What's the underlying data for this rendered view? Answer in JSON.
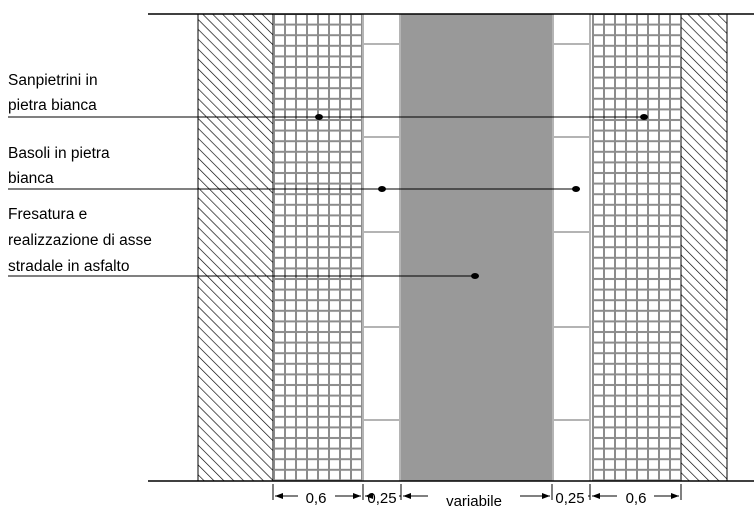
{
  "labels": {
    "sanpietrini": [
      "Sanpietrini in",
      "pietra bianca"
    ],
    "basoli": [
      "Basoli in pietra",
      "bianca"
    ],
    "fresatura": [
      "Fresatura e",
      "realizzazione di asse",
      "stradale in asfalto"
    ]
  },
  "dimensions": {
    "left_sanpietrini": "0,6",
    "left_basoli": "0,25",
    "center": "variabile",
    "right_basoli": "0,25",
    "right_sanpietrini": "0,6"
  },
  "colors": {
    "line": "#000000",
    "asphalt": "#999999",
    "tile_line": "#8c8c8c",
    "basoli_line": "#b4b4b4"
  }
}
